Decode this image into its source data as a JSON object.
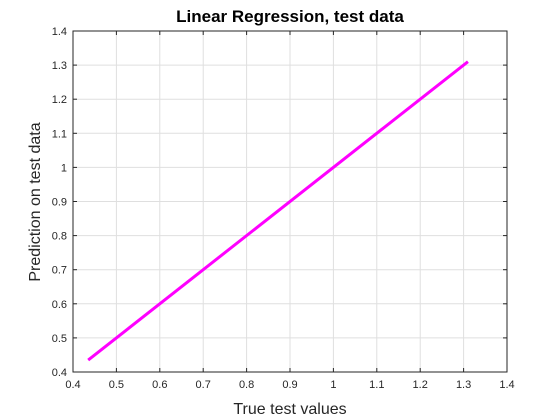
{
  "chart_data": {
    "type": "line",
    "title": "Linear Regression, test data",
    "xlabel": "True test values",
    "ylabel": "Prediction on test data",
    "xlim": [
      0.4,
      1.4
    ],
    "ylim": [
      0.4,
      1.4
    ],
    "xticks": [
      "0.4",
      "0.5",
      "0.6",
      "0.7",
      "0.8",
      "0.9",
      "1",
      "1.1",
      "1.2",
      "1.3",
      "1.4"
    ],
    "yticks": [
      "0.4",
      "0.5",
      "0.6",
      "0.7",
      "0.8",
      "0.9",
      "1",
      "1.1",
      "1.2",
      "1.3",
      "1.4"
    ],
    "grid": true,
    "series": [
      {
        "x": [
          0.435,
          1.31
        ],
        "y": [
          0.435,
          1.31
        ],
        "color": "#ff00ff"
      }
    ]
  }
}
